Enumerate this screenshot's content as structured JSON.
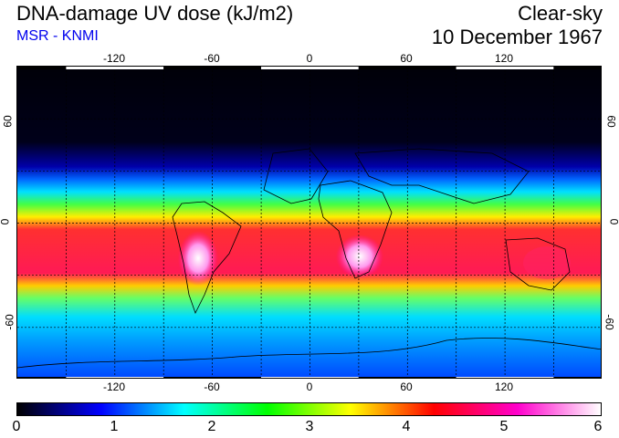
{
  "header": {
    "title": "DNA-damage UV dose (kJ/m2)",
    "subtitle": "MSR - KNMI",
    "condition": "Clear-sky",
    "date": "10 December 1967"
  },
  "map": {
    "lon_ticks": [
      "-120",
      "-60",
      "0",
      "60",
      "120"
    ],
    "lat_ticks_left": [
      "60",
      "0",
      "-60"
    ],
    "lat_ticks_right": [
      "60",
      "0",
      "-60"
    ],
    "lon_range": [
      -180,
      180
    ],
    "lat_range": [
      -90,
      90
    ]
  },
  "colorbar": {
    "labels": [
      "0",
      "1",
      "2",
      "3",
      "4",
      "5",
      "6"
    ],
    "colors": [
      "#000000",
      "#0000ff",
      "#00ffff",
      "#00ff00",
      "#ffff00",
      "#ff0000",
      "#ff00cc",
      "#ffffff"
    ]
  }
}
